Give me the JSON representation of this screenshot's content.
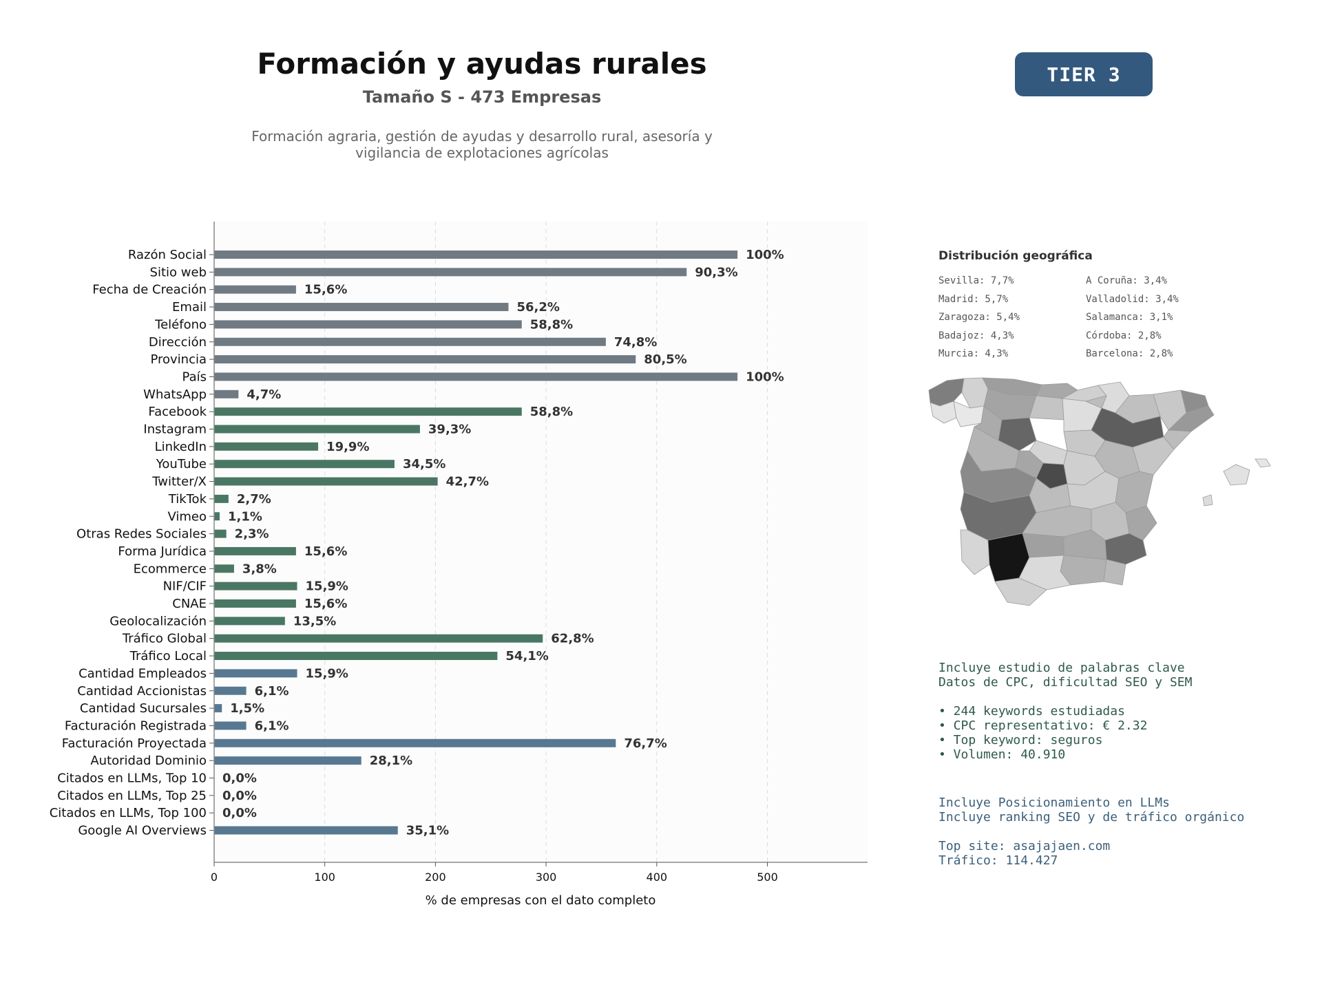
{
  "header": {
    "title": "Formación y ayudas rurales",
    "subtitle": "Tamaño S - 473 Empresas",
    "description_line1": "Formación agraria, gestión de ayudas y desarrollo rural, asesoría y",
    "description_line2": "vigilancia de explotaciones agrícolas",
    "tier_label": "TIER 3",
    "tier_color": "#34597e"
  },
  "colors": {
    "gray": "#707a83",
    "green": "#4a7763",
    "blue": "#587891",
    "seo_text": "#2e5a48",
    "llm_text": "#3b5f7a"
  },
  "chart_data": {
    "type": "bar",
    "orientation": "horizontal",
    "categories": [
      "Razón Social",
      "Sitio web",
      "Fecha de Creación",
      "Email",
      "Teléfono",
      "Dirección",
      "Provincia",
      "País",
      "WhatsApp",
      "Facebook",
      "Instagram",
      "LinkedIn",
      "YouTube",
      "Twitter/X",
      "TikTok",
      "Vimeo",
      "Otras Redes Sociales",
      "Forma Jurídica",
      "Ecommerce",
      "NIF/CIF",
      "CNAE",
      "Geolocalización",
      "Tráfico Global",
      "Tráfico Local",
      "Cantidad Empleados",
      "Cantidad Accionistas",
      "Cantidad Sucursales",
      "Facturación Registrada",
      "Facturación Proyectada",
      "Autoridad Dominio",
      "Citados en LLMs, Top 10",
      "Citados en LLMs, Top 25",
      "Citados en LLMs, Top 100",
      "Google AI Overviews"
    ],
    "values": [
      473,
      427,
      74,
      266,
      278,
      354,
      381,
      473,
      22,
      278,
      186,
      94,
      163,
      202,
      13,
      5,
      11,
      74,
      18,
      75,
      74,
      64,
      297,
      256,
      75,
      29,
      7,
      29,
      363,
      133,
      0,
      0,
      0,
      166
    ],
    "value_labels": [
      "100%",
      "90,3%",
      "15,6%",
      "56,2%",
      "58,8%",
      "74,8%",
      "80,5%",
      "100%",
      "4,7%",
      "58,8%",
      "39,3%",
      "19,9%",
      "34,5%",
      "42,7%",
      "2,7%",
      "1,1%",
      "2,3%",
      "15,6%",
      "3,8%",
      "15,9%",
      "15,6%",
      "13,5%",
      "62,8%",
      "54,1%",
      "15,9%",
      "6,1%",
      "1,5%",
      "6,1%",
      "76,7%",
      "28,1%",
      "0,0%",
      "0,0%",
      "0,0%",
      "35,1%"
    ],
    "groups": [
      "gray",
      "gray",
      "gray",
      "gray",
      "gray",
      "gray",
      "gray",
      "gray",
      "gray",
      "green",
      "green",
      "green",
      "green",
      "green",
      "green",
      "green",
      "green",
      "green",
      "green",
      "green",
      "green",
      "green",
      "green",
      "green",
      "blue",
      "blue",
      "blue",
      "blue",
      "blue",
      "blue",
      "blue",
      "blue",
      "blue",
      "blue"
    ],
    "xlabel": "% de empresas con el dato completo",
    "xlim": [
      0,
      591
    ],
    "xticks": [
      0,
      100,
      200,
      300,
      400,
      500
    ],
    "grid": true
  },
  "geo": {
    "title": "Distribución geográfica",
    "left_column": [
      "Sevilla: 7,7%",
      "Madrid: 5,7%",
      "Zaragoza: 5,4%",
      "Badajoz: 4,3%",
      "Murcia: 4,3%"
    ],
    "right_column": [
      "A Coruña: 3,4%",
      "Valladolid: 3,4%",
      "Salamanca: 3,1%",
      "Córdoba: 2,8%",
      "Barcelona: 2,8%"
    ]
  },
  "seo": {
    "line1": "Incluye estudio de palabras clave",
    "line2": "Datos de CPC, dificultad SEO y SEM",
    "bullet1": "• 244 keywords estudiadas",
    "bullet2": "• CPC representativo: € 2.32",
    "bullet3": "• Top keyword: seguros",
    "bullet4": "• Volumen: 40.910"
  },
  "llm": {
    "line1": "Incluye Posicionamiento en LLMs",
    "line2": "Incluye ranking SEO y de tráfico orgánico",
    "top_site": "Top site: asajajaen.com",
    "traffic": "Tráfico: 114.427"
  }
}
